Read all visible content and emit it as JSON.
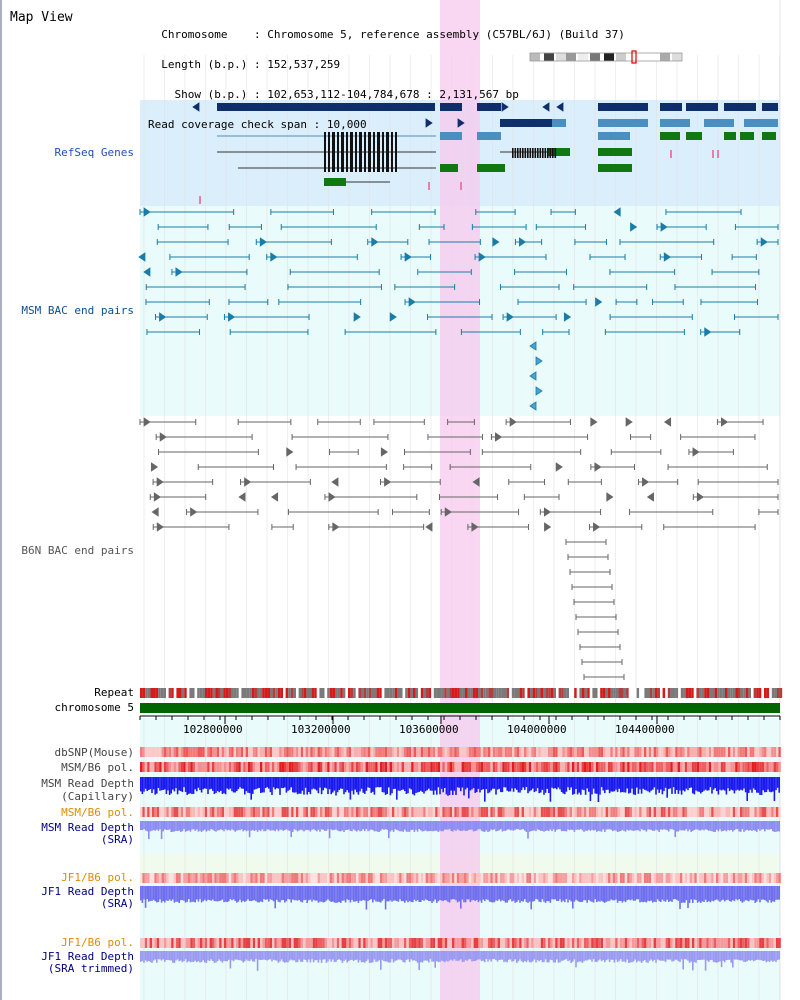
{
  "page_title": "Map View",
  "info": {
    "chromosome_label": "Chromosome",
    "chromosome_value": "Chromosome 5, reference assembly (C57BL/6J) (Build 37)",
    "length_label": "Length (b.p.)",
    "length_value": "152,537,259",
    "show_label": "Show (b.p.)",
    "show_value": "102,653,112-104,784,678 : 2,131,567 bp",
    "coverage_label": "Read coverage check span",
    "coverage_value": "10,000"
  },
  "tracks": {
    "refseq": "RefSeq Genes",
    "msm_bac": "MSM BAC end pairs",
    "b6n_bac": "B6N BAC end pairs",
    "repeat": "Repeat",
    "chromosome": "chromosome 5",
    "dbsnp": "dbSNP(Mouse)",
    "msm_b6_pol_1": "MSM/B6 pol.",
    "msm_read_depth_cap_1": "MSM Read Depth",
    "msm_read_depth_cap_2": "(Capillary)",
    "msm_b6_pol_2": "MSM/B6 pol.",
    "msm_read_depth_sra_1": "MSM Read Depth",
    "msm_read_depth_sra_2": "(SRA)",
    "jf1_b6_pol_1": "JF1/B6 pol.",
    "jf1_read_depth_sra_1": "JF1 Read Depth",
    "jf1_read_depth_sra_2": "(SRA)",
    "jf1_b6_pol_2": "JF1/B6 pol.",
    "jf1_read_depth_trim_1": "JF1 Read Depth",
    "jf1_read_depth_trim_2": "(SRA trimmed)"
  },
  "axis_ticks": [
    "102800000",
    "103200000",
    "103600000",
    "104000000",
    "104400000"
  ],
  "colors": {
    "refseq_bg": "#dbeefb",
    "bac_bg": "#e9fbfa",
    "highlight": "#f7c8ee",
    "msm_label": "#0b4f8f",
    "pol_label": "#e08b00",
    "read_depth_label": "#000080",
    "gray_label": "#444444",
    "chromosome_bar": "#006400"
  }
}
